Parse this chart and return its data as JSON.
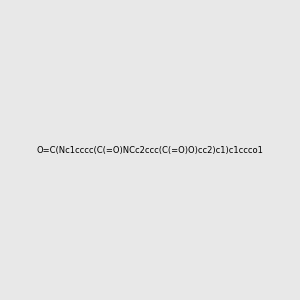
{
  "smiles": "O=C(Nc1cccc(C(=O)NCc2ccc(C(=O)O)cc2)c1)c1ccco1",
  "title": "",
  "bg_color": "#e8e8e8",
  "bond_color": "#000000",
  "N_color": "#0000cd",
  "O_color": "#ff2200",
  "figsize": [
    3.0,
    3.0
  ],
  "dpi": 100
}
